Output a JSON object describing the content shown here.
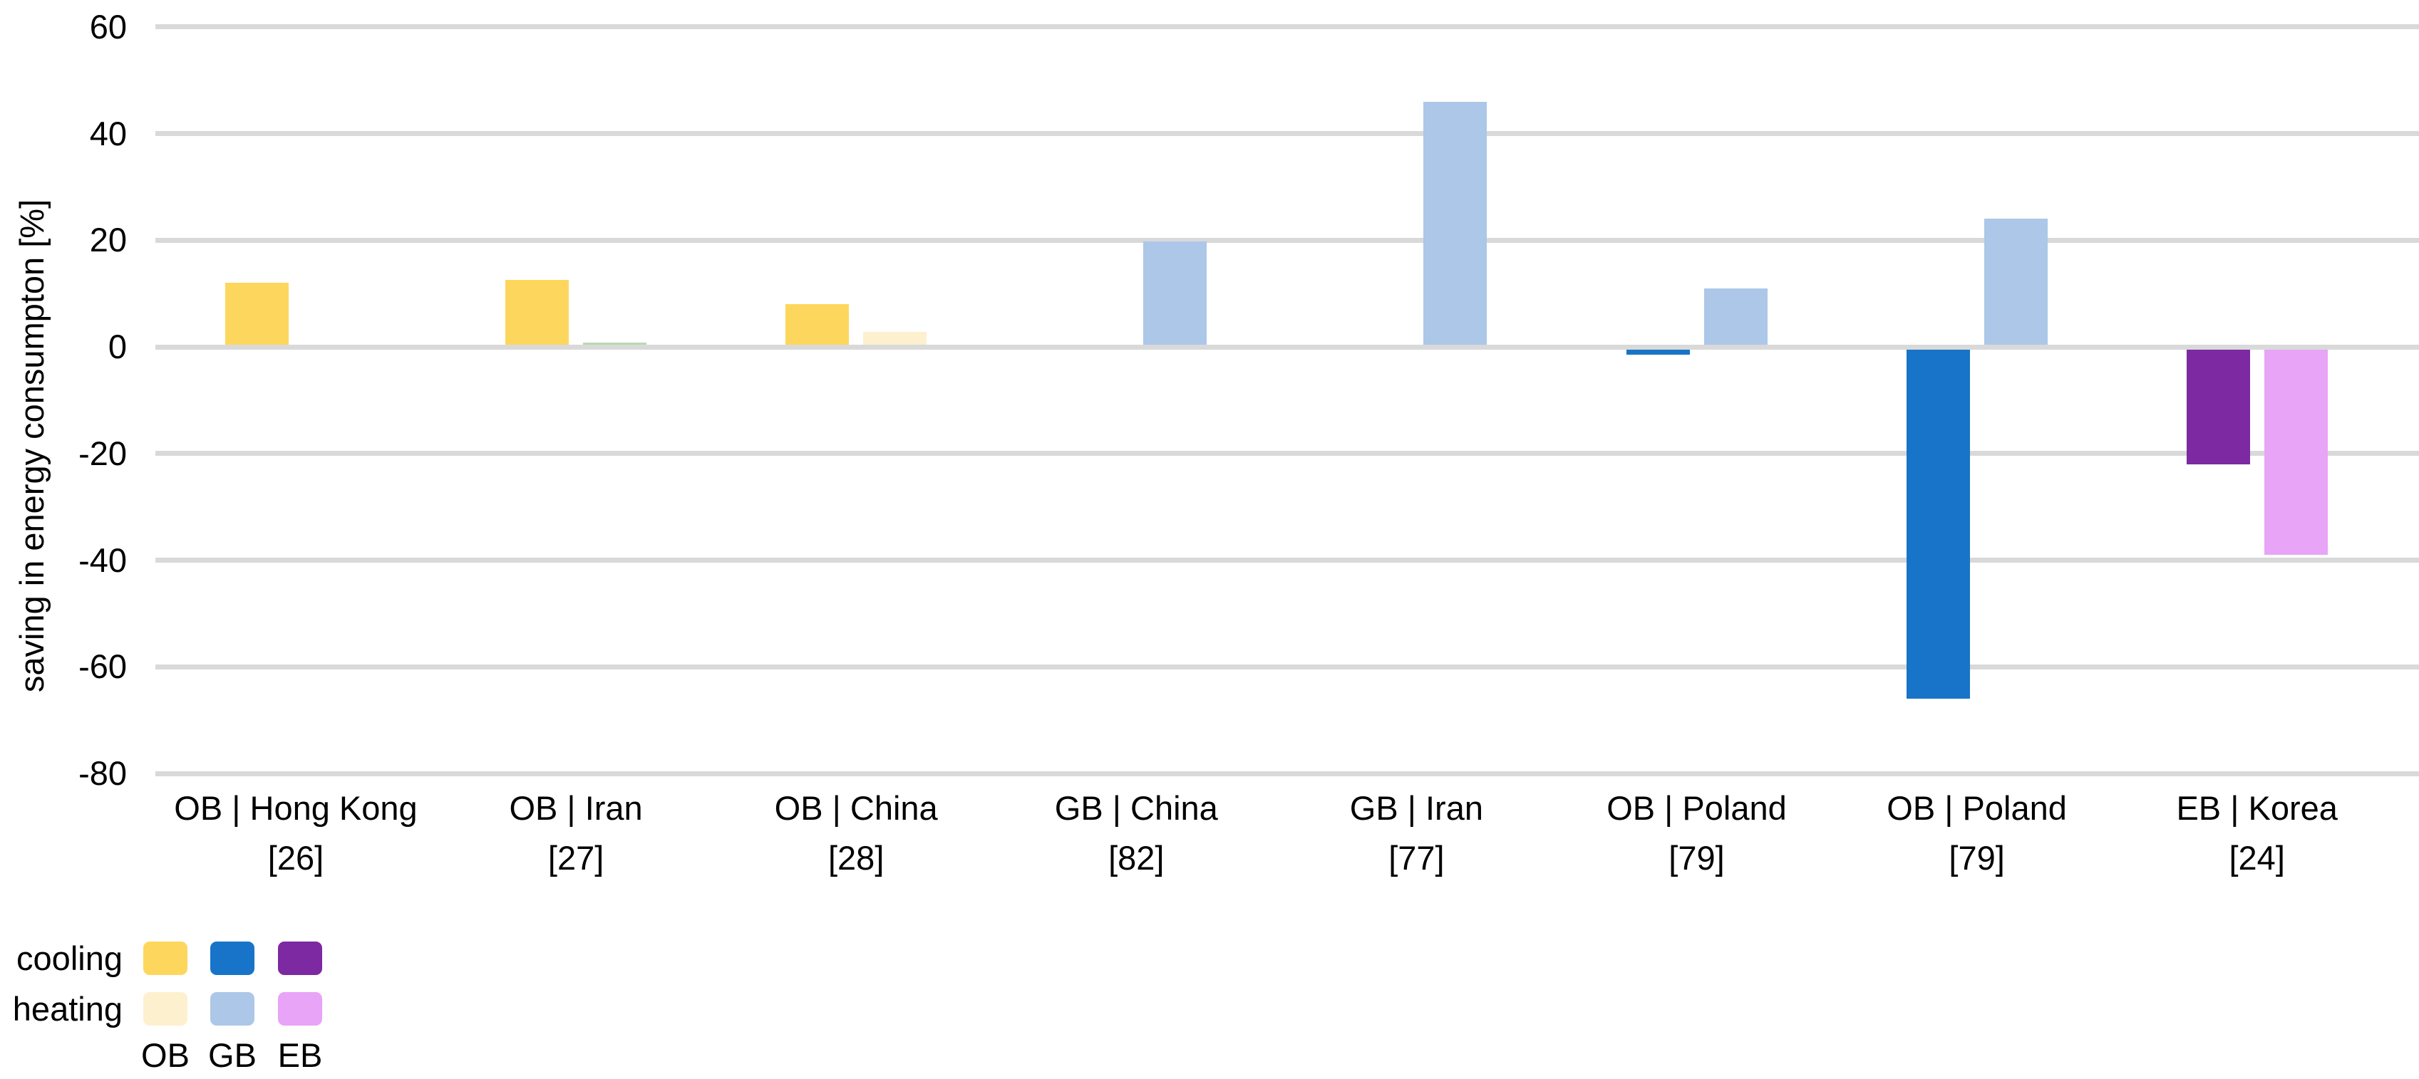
{
  "figure": {
    "background": "#ffffff"
  },
  "chart_data": {
    "type": "bar",
    "title": "",
    "xlabel": "",
    "ylabel": "saving in energy consumpton [%]",
    "ylim": [
      -80,
      60
    ],
    "yticks": [
      60,
      40,
      20,
      0,
      -20,
      -40,
      -60,
      -80
    ],
    "grid": "horizontal",
    "gridline_color": "#d9d9d9",
    "text_color": "#000000",
    "legend_position": "bottom-left",
    "palette": {
      "OB_cooling": "#FDD75D",
      "OB_heating": "#FDF0CE",
      "GB_cooling": "#1874C8",
      "GB_heating": "#ACC7E7",
      "EB_cooling": "#7C29A2",
      "EB_heating": "#E8A4F6",
      "green": "#B8DBAE"
    },
    "groups": [
      {
        "label": "OB | Hong Kong",
        "ref": "[26]",
        "bars": [
          {
            "slot": "cooling",
            "color": "OB_cooling",
            "value": 12
          }
        ]
      },
      {
        "label": "OB | Iran",
        "ref": "[27]",
        "bars": [
          {
            "slot": "cooling",
            "color": "OB_cooling",
            "value": 12.5
          },
          {
            "slot": "heating",
            "color": "green",
            "value": 0.8
          }
        ]
      },
      {
        "label": "OB | China",
        "ref": "[28]",
        "bars": [
          {
            "slot": "cooling",
            "color": "OB_cooling",
            "value": 8
          },
          {
            "slot": "heating",
            "color": "OB_heating",
            "value": 2.8
          }
        ]
      },
      {
        "label": "GB | China",
        "ref": "[82]",
        "bars": [
          {
            "slot": "heating",
            "color": "GB_heating",
            "value": 19.8
          }
        ]
      },
      {
        "label": "GB | Iran",
        "ref": "[77]",
        "bars": [
          {
            "slot": "heating",
            "color": "GB_heating",
            "value": 46
          }
        ]
      },
      {
        "label": "OB | Poland",
        "ref": "[79]",
        "bars": [
          {
            "slot": "cooling",
            "color": "GB_cooling",
            "value": -1.5
          },
          {
            "slot": "heating",
            "color": "GB_heating",
            "value": 11
          }
        ]
      },
      {
        "label": "OB | Poland",
        "ref": "[79]",
        "bars": [
          {
            "slot": "cooling",
            "color": "GB_cooling",
            "value": -66
          },
          {
            "slot": "heating",
            "color": "GB_heating",
            "value": 24
          }
        ]
      },
      {
        "label": "EB | Korea",
        "ref": "[24]",
        "bars": [
          {
            "slot": "cooling",
            "color": "EB_cooling",
            "value": -22
          },
          {
            "slot": "heating",
            "color": "EB_heating",
            "value": -39
          }
        ]
      }
    ],
    "legend": {
      "rows": [
        {
          "label": "cooling",
          "colors": [
            "OB_cooling",
            "GB_cooling",
            "EB_cooling"
          ]
        },
        {
          "label": "heating",
          "colors": [
            "OB_heating",
            "GB_heating",
            "EB_heating"
          ]
        }
      ],
      "columns": [
        "OB",
        "GB",
        "EB"
      ]
    }
  }
}
